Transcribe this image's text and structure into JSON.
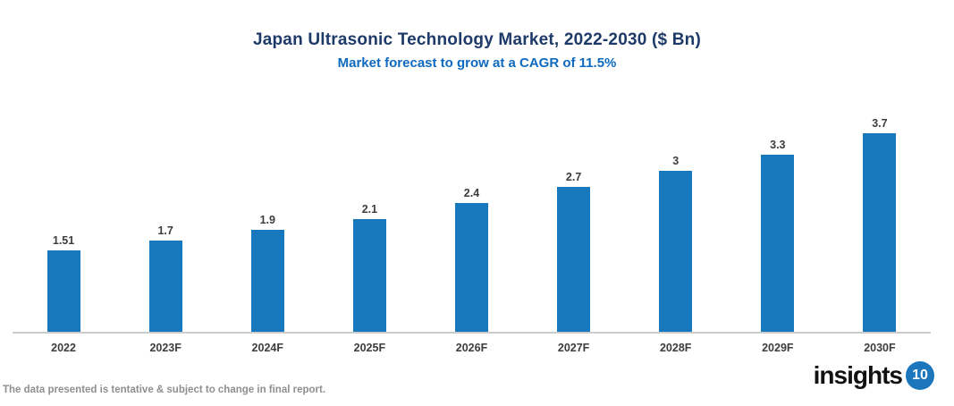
{
  "chart_data": {
    "type": "bar",
    "title": "Japan Ultrasonic Technology Market, 2022-2030 ($ Bn)",
    "subtitle": "Market forecast to grow at a CAGR of 11.5%",
    "categories": [
      "2022",
      "2023F",
      "2024F",
      "2025F",
      "2026F",
      "2027F",
      "2028F",
      "2029F",
      "2030F"
    ],
    "values": [
      1.51,
      1.7,
      1.9,
      2.1,
      2.4,
      2.7,
      3,
      3.3,
      3.7
    ],
    "xlabel": "",
    "ylabel": "",
    "ylim": [
      0,
      4
    ],
    "grid": false,
    "legend": "none",
    "bar_color": "#1878be",
    "value_label_color": "#3d3d3d",
    "axis_line_color": "#cccccc"
  },
  "footer": {
    "disclaimer": "The data presented is tentative & subject to change in final report.",
    "logo_text": "insights",
    "logo_number": "10",
    "logo_circle_color": "#1b76bc"
  },
  "colors": {
    "title": "#1e3a68",
    "subtitle": "#0d6abf"
  }
}
